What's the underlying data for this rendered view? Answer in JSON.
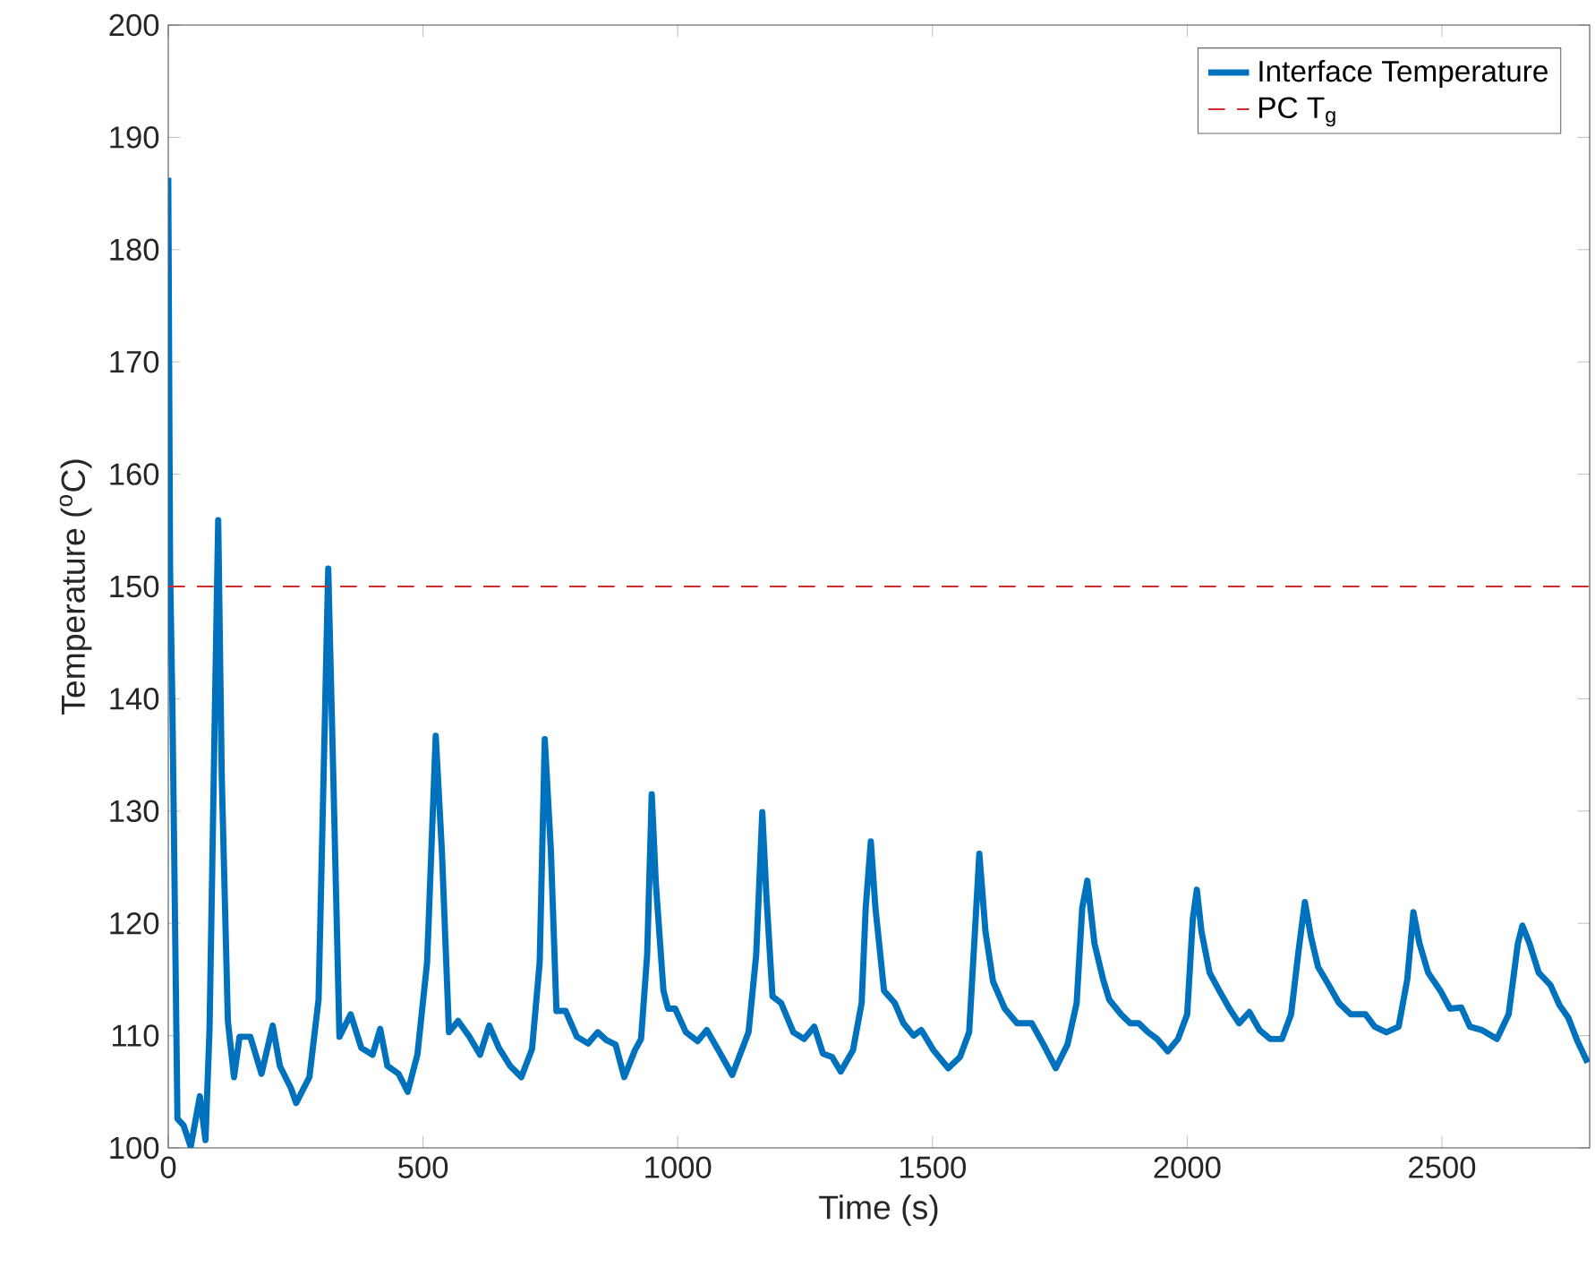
{
  "chart_data": {
    "type": "line",
    "xlabel": "Time (s)",
    "ylabel": "Temperature ($^{o}$C)",
    "xlim": [
      0,
      2790
    ],
    "xticks": [
      0,
      500,
      1000,
      1500,
      2000,
      2500
    ],
    "ylim": [
      100,
      200
    ],
    "yticks": [
      100,
      110,
      120,
      130,
      140,
      150,
      160,
      170,
      180,
      190,
      200
    ],
    "grid": false,
    "legend": "top right",
    "marker": "none",
    "line_style": "solid",
    "series": [
      {
        "name": "Interface Temperature",
        "color": "#0072bd",
        "x": [
          0,
          3.5,
          8,
          18,
          30,
          44,
          62,
          73,
          81,
          91,
          98,
          105,
          117,
          129,
          140,
          161,
          183,
          205,
          219,
          241,
          251,
          277,
          295,
          314,
          324,
          336,
          358,
          379,
          401,
          416,
          430,
          452,
          470,
          489,
          508,
          525,
          537,
          551,
          569,
          591,
          612,
          630,
          649,
          671,
          693,
          714,
          729,
          739,
          751,
          762,
          780,
          802,
          824,
          843,
          860,
          878,
          895,
          916,
          928,
          940,
          949,
          957,
          972,
          981,
          995,
          1016,
          1039,
          1057,
          1080,
          1107,
          1139,
          1154,
          1166,
          1174,
          1186,
          1203,
          1227,
          1248,
          1268,
          1285,
          1303,
          1320,
          1344,
          1361,
          1369,
          1379,
          1388,
          1405,
          1426,
          1443,
          1463,
          1478,
          1502,
          1531,
          1554,
          1572,
          1584,
          1592,
          1604,
          1619,
          1642,
          1666,
          1695,
          1718,
          1742,
          1765,
          1783,
          1794,
          1804,
          1818,
          1835,
          1847,
          1870,
          1888,
          1905,
          1923,
          1941,
          1962,
          1982,
          2000,
          2011,
          2019,
          2028,
          2044,
          2063,
          2083,
          2102,
          2122,
          2142,
          2163,
          2186,
          2204,
          2219,
          2231,
          2243,
          2257,
          2278,
          2298,
          2321,
          2350,
          2368,
          2391,
          2415,
          2432,
          2444,
          2456,
          2473,
          2497,
          2516,
          2538,
          2555,
          2578,
          2608,
          2631,
          2649,
          2658,
          2672,
          2690,
          2713,
          2731,
          2748,
          2766,
          2786
        ],
        "values": [
          186.4,
          151.6,
          139.7,
          102.6,
          102,
          100.1,
          104.6,
          100.7,
          110.6,
          137.7,
          155.9,
          133,
          111.3,
          106.3,
          109.9,
          109.9,
          106.6,
          110.9,
          107.3,
          105.3,
          104,
          106.3,
          113.2,
          151.6,
          133,
          109.9,
          111.9,
          108.9,
          108.3,
          110.6,
          107.3,
          106.6,
          105,
          108.3,
          116.5,
          136.7,
          126.5,
          110.3,
          111.3,
          109.9,
          108.3,
          110.9,
          108.9,
          107.3,
          106.3,
          108.8,
          116.5,
          136.4,
          126.5,
          112.2,
          112.2,
          109.9,
          109.3,
          110.3,
          109.6,
          109.2,
          106.3,
          108.7,
          109.7,
          117.2,
          131.5,
          123.6,
          114,
          112.4,
          112.4,
          110.3,
          109.5,
          110.5,
          108.7,
          106.5,
          110.3,
          117.2,
          129.9,
          122.5,
          113.5,
          112.9,
          110.3,
          109.7,
          110.8,
          108.4,
          108.1,
          106.8,
          108.7,
          112.9,
          121.4,
          127.3,
          121.4,
          114,
          112.9,
          111.1,
          110,
          110.5,
          108.7,
          107.1,
          108.1,
          110.3,
          119.8,
          126.2,
          119.3,
          114.8,
          112.4,
          111.1,
          111.1,
          109.2,
          107.1,
          109.2,
          112.9,
          121.4,
          123.8,
          118.2,
          115,
          113.2,
          111.9,
          111.1,
          111.1,
          110.3,
          109.7,
          108.6,
          109.7,
          111.9,
          120.4,
          123,
          119.3,
          115.6,
          114,
          112.4,
          111.1,
          112.1,
          110.5,
          109.7,
          109.7,
          111.9,
          117.7,
          121.9,
          118.8,
          116.1,
          114.5,
          112.9,
          111.9,
          111.9,
          110.8,
          110.3,
          110.8,
          115,
          121,
          118.2,
          115.6,
          114,
          112.4,
          112.5,
          110.8,
          110.5,
          109.7,
          111.9,
          118.2,
          119.8,
          118.2,
          115.6,
          114.5,
          112.7,
          111.6,
          109.5,
          107.6
        ]
      }
    ],
    "ref_lines": [
      {
        "axis": "y",
        "value": 150,
        "label": "PC T$_{g}$",
        "color": "#d22b2b",
        "line_style": "dashed"
      }
    ]
  }
}
